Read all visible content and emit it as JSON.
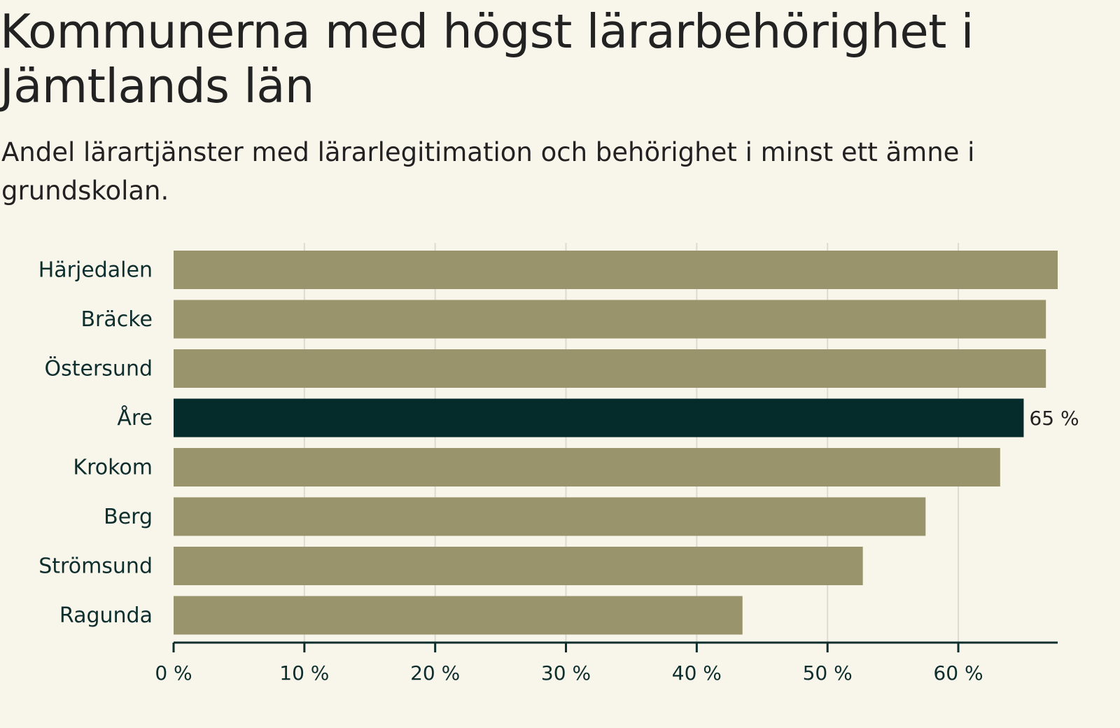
{
  "colors": {
    "background": "#f8f5ea",
    "bar": "#99946b",
    "highlight": "#062b2b",
    "text": "#222222",
    "axis_text": "#0e2e2e",
    "grid": "#dddbd2"
  },
  "chart_data": {
    "type": "bar",
    "orientation": "horizontal",
    "title": "Kommunerna med högst lärarbehörighet i Jämtlands län",
    "subtitle": "Andel lärartjänster med lärarlegitimation och behörighet i minst ett ämne i grundskolan.",
    "categories": [
      "Härjedalen",
      "Bräcke",
      "Östersund",
      "Åre",
      "Krokom",
      "Berg",
      "Strömsund",
      "Ragunda"
    ],
    "values": [
      67.6,
      66.7,
      66.7,
      65,
      63.2,
      57.5,
      52.7,
      43.5
    ],
    "highlight": "Åre",
    "data_labels": [
      {
        "category": "Åre",
        "text": "65 %"
      }
    ],
    "x_ticks": [
      {
        "value": 0,
        "label": "0 %"
      },
      {
        "value": 10,
        "label": "10 %"
      },
      {
        "value": 20,
        "label": "20 %"
      },
      {
        "value": 30,
        "label": "30 %"
      },
      {
        "value": 40,
        "label": "40 %"
      },
      {
        "value": 50,
        "label": "50 %"
      },
      {
        "value": 60,
        "label": "60 %"
      }
    ],
    "xlim": [
      0,
      67.6
    ],
    "xlabel": "",
    "ylabel": "",
    "grid": true
  }
}
